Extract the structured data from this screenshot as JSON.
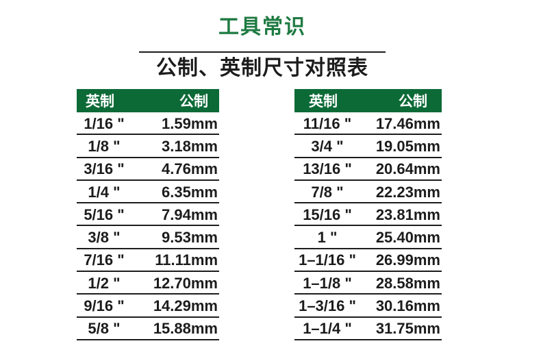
{
  "page": {
    "title": "工具常识",
    "subtitle": "公制、英制尺寸对照表"
  },
  "colors": {
    "background": "#ffffff",
    "title_green": "#1e7a41",
    "header_green": "#0c6a37",
    "header_text": "#ffffff",
    "text": "#1c1c1c",
    "line": "#1c1c1c"
  },
  "tables": [
    {
      "name": "left",
      "headers": {
        "imperial": "英制",
        "metric": "公制"
      },
      "rows": [
        {
          "imperial": "1/16 \"",
          "metric": "1.59mm"
        },
        {
          "imperial": "1/8 \"",
          "metric": "3.18mm"
        },
        {
          "imperial": "3/16 \"",
          "metric": "4.76mm"
        },
        {
          "imperial": "1/4 \"",
          "metric": "6.35mm"
        },
        {
          "imperial": "5/16 \"",
          "metric": "7.94mm"
        },
        {
          "imperial": "3/8 \"",
          "metric": "9.53mm"
        },
        {
          "imperial": "7/16 \"",
          "metric": "11.11mm"
        },
        {
          "imperial": "1/2 \"",
          "metric": "12.70mm"
        },
        {
          "imperial": "9/16 \"",
          "metric": "14.29mm"
        },
        {
          "imperial": "5/8 \"",
          "metric": "15.88mm"
        }
      ]
    },
    {
      "name": "right",
      "headers": {
        "imperial": "英制",
        "metric": "公制"
      },
      "rows": [
        {
          "imperial": "11/16 \"",
          "metric": "17.46mm"
        },
        {
          "imperial": "3/4 \"",
          "metric": "19.05mm"
        },
        {
          "imperial": "13/16 \"",
          "metric": "20.64mm"
        },
        {
          "imperial": "7/8 \"",
          "metric": "22.23mm"
        },
        {
          "imperial": "15/16 \"",
          "metric": "23.81mm"
        },
        {
          "imperial": "1 \"",
          "metric": "25.40mm"
        },
        {
          "imperial": "1–1/16 \"",
          "metric": "26.99mm"
        },
        {
          "imperial": "1–1/8 \"",
          "metric": "28.58mm"
        },
        {
          "imperial": "1–3/16 \"",
          "metric": "30.16mm"
        },
        {
          "imperial": "1–1/4 \"",
          "metric": "31.75mm"
        }
      ]
    }
  ]
}
